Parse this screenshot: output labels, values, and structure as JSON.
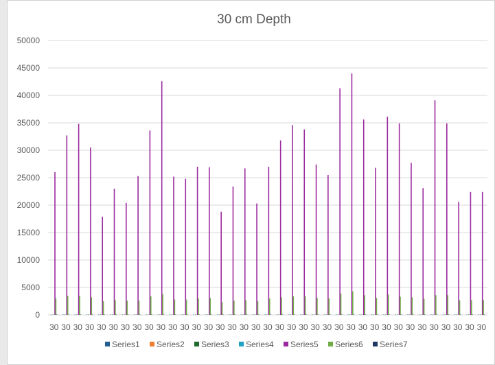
{
  "chart_data": {
    "type": "bar",
    "title": "30 cm  Depth",
    "xlabel": "",
    "ylabel": "",
    "ylim": [
      0,
      50000
    ],
    "yticks": [
      0,
      5000,
      10000,
      15000,
      20000,
      25000,
      30000,
      35000,
      40000,
      45000,
      50000
    ],
    "grid": true,
    "legend_position": "bottom",
    "categories": [
      "30",
      "30",
      "30",
      "30",
      "30",
      "30",
      "30",
      "30",
      "30",
      "30",
      "30",
      "30",
      "30",
      "30",
      "30",
      "30",
      "30",
      "30",
      "30",
      "30",
      "30",
      "30",
      "30",
      "30",
      "30",
      "30",
      "30",
      "30",
      "30",
      "30",
      "30",
      "30",
      "30",
      "30",
      "30",
      "30",
      "30"
    ],
    "series": [
      {
        "name": "Series1",
        "color": "#255e91",
        "values": [
          60,
          60,
          60,
          60,
          60,
          60,
          60,
          60,
          60,
          60,
          60,
          60,
          60,
          60,
          60,
          60,
          60,
          60,
          60,
          60,
          60,
          60,
          60,
          60,
          60,
          60,
          60,
          60,
          60,
          60,
          60,
          60,
          60,
          60,
          60,
          60,
          60
        ]
      },
      {
        "name": "Series2",
        "color": "#ed7d31",
        "values": [
          0,
          0,
          0,
          0,
          0,
          0,
          0,
          0,
          0,
          0,
          0,
          0,
          0,
          0,
          0,
          0,
          0,
          0,
          0,
          0,
          0,
          0,
          0,
          0,
          0,
          0,
          0,
          0,
          0,
          0,
          0,
          0,
          0,
          0,
          0,
          0,
          0
        ]
      },
      {
        "name": "Series3",
        "color": "#1f6b2e",
        "values": [
          60,
          60,
          60,
          60,
          60,
          60,
          60,
          60,
          60,
          60,
          60,
          60,
          60,
          60,
          60,
          60,
          60,
          60,
          60,
          60,
          60,
          60,
          60,
          60,
          60,
          60,
          60,
          60,
          60,
          60,
          60,
          60,
          60,
          60,
          60,
          60,
          60
        ]
      },
      {
        "name": "Series4",
        "color": "#1fa2c4",
        "values": [
          0,
          0,
          0,
          0,
          0,
          0,
          0,
          0,
          0,
          0,
          0,
          0,
          0,
          0,
          0,
          0,
          0,
          0,
          0,
          0,
          0,
          0,
          0,
          0,
          0,
          0,
          0,
          0,
          0,
          0,
          0,
          0,
          0,
          0,
          0,
          0,
          0
        ]
      },
      {
        "name": "Series5",
        "color": "#9b2a9f",
        "values": [
          26000,
          32700,
          34800,
          30500,
          17900,
          23000,
          20400,
          25300,
          33600,
          42600,
          25200,
          24800,
          27000,
          26900,
          18800,
          23400,
          26700,
          20300,
          27000,
          31800,
          34600,
          33800,
          27400,
          25500,
          41300,
          44000,
          35600,
          26800,
          36100,
          34900,
          27700,
          23100,
          39100,
          34900,
          20600,
          22400,
          22400
        ]
      },
      {
        "name": "Series6",
        "color": "#70ad47",
        "values": [
          3000,
          3500,
          3500,
          3200,
          2500,
          2700,
          2600,
          2600,
          3400,
          3800,
          2800,
          2800,
          3000,
          3100,
          2300,
          2600,
          2700,
          2500,
          3000,
          3200,
          3400,
          3400,
          3100,
          3000,
          3900,
          4300,
          3600,
          3100,
          3700,
          3300,
          3200,
          2900,
          3600,
          3600,
          2700,
          2700,
          2700
        ]
      },
      {
        "name": "Series7",
        "color": "#1f3864",
        "values": [
          60,
          60,
          60,
          60,
          60,
          60,
          60,
          60,
          60,
          60,
          60,
          60,
          60,
          60,
          60,
          60,
          60,
          60,
          60,
          60,
          60,
          60,
          60,
          60,
          60,
          60,
          60,
          60,
          60,
          60,
          60,
          60,
          60,
          60,
          60,
          60,
          60
        ]
      }
    ]
  }
}
